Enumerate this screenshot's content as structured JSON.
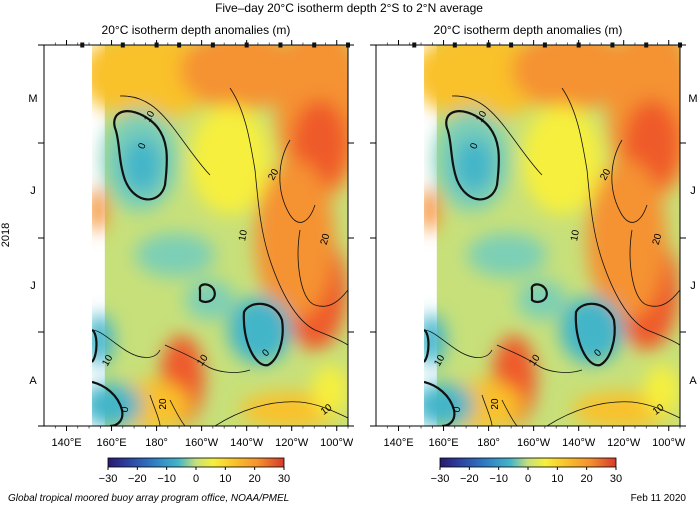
{
  "header": {
    "title": "Five–day 20°C isotherm depth  2°S to 2°N average",
    "y_label": "2018"
  },
  "footer": {
    "credit": "Global tropical moored buoy array program office, NOAA/PMEL",
    "date": "Feb 11 2020"
  },
  "colors": {
    "scale": [
      "#2a1a6e",
      "#2c3c9c",
      "#2f79c2",
      "#43b5c9",
      "#7ccfb6",
      "#c7e07a",
      "#f6ef3c",
      "#f9c12a",
      "#f59230",
      "#ef5a2c",
      "#d63b2a"
    ]
  },
  "chart_data": [
    {
      "type": "heatmap",
      "title": "20°C isotherm depth anomalies (m)",
      "x_ticks": [
        "140°E",
        "160°E",
        "180°",
        "160°W",
        "140°W",
        "120°W",
        "100°W"
      ],
      "x_tick_lon": [
        140,
        160,
        180,
        200,
        220,
        240,
        260
      ],
      "xlim": [
        130,
        265
      ],
      "data_lon_range": [
        157,
        265
      ],
      "y_ticks": [
        "M",
        "J",
        "J",
        "A"
      ],
      "y_axis": "2018 months (time increasing downward)",
      "colorbar": {
        "ticks": [
          -30,
          -20,
          -10,
          0,
          10,
          20,
          30
        ],
        "range": [
          -30,
          30
        ],
        "units": "m"
      },
      "contour_levels": [
        0,
        10,
        20
      ],
      "grid": false
    },
    {
      "type": "heatmap",
      "title": "20°C isotherm depth anomalies (m)",
      "x_ticks": [
        "140°E",
        "160°E",
        "180°",
        "160°W",
        "140°W",
        "120°W",
        "100°W"
      ],
      "x_tick_lon": [
        140,
        160,
        180,
        200,
        220,
        240,
        260
      ],
      "xlim": [
        130,
        265
      ],
      "data_lon_range": [
        157,
        265
      ],
      "y_ticks": [
        "M",
        "J",
        "J",
        "A"
      ],
      "y_axis": "2018 months (time increasing downward)",
      "colorbar": {
        "ticks": [
          -30,
          -20,
          -10,
          0,
          10,
          20,
          30
        ],
        "range": [
          -30,
          30
        ],
        "units": "m"
      },
      "contour_levels": [
        0,
        10,
        20
      ],
      "grid": false
    }
  ]
}
